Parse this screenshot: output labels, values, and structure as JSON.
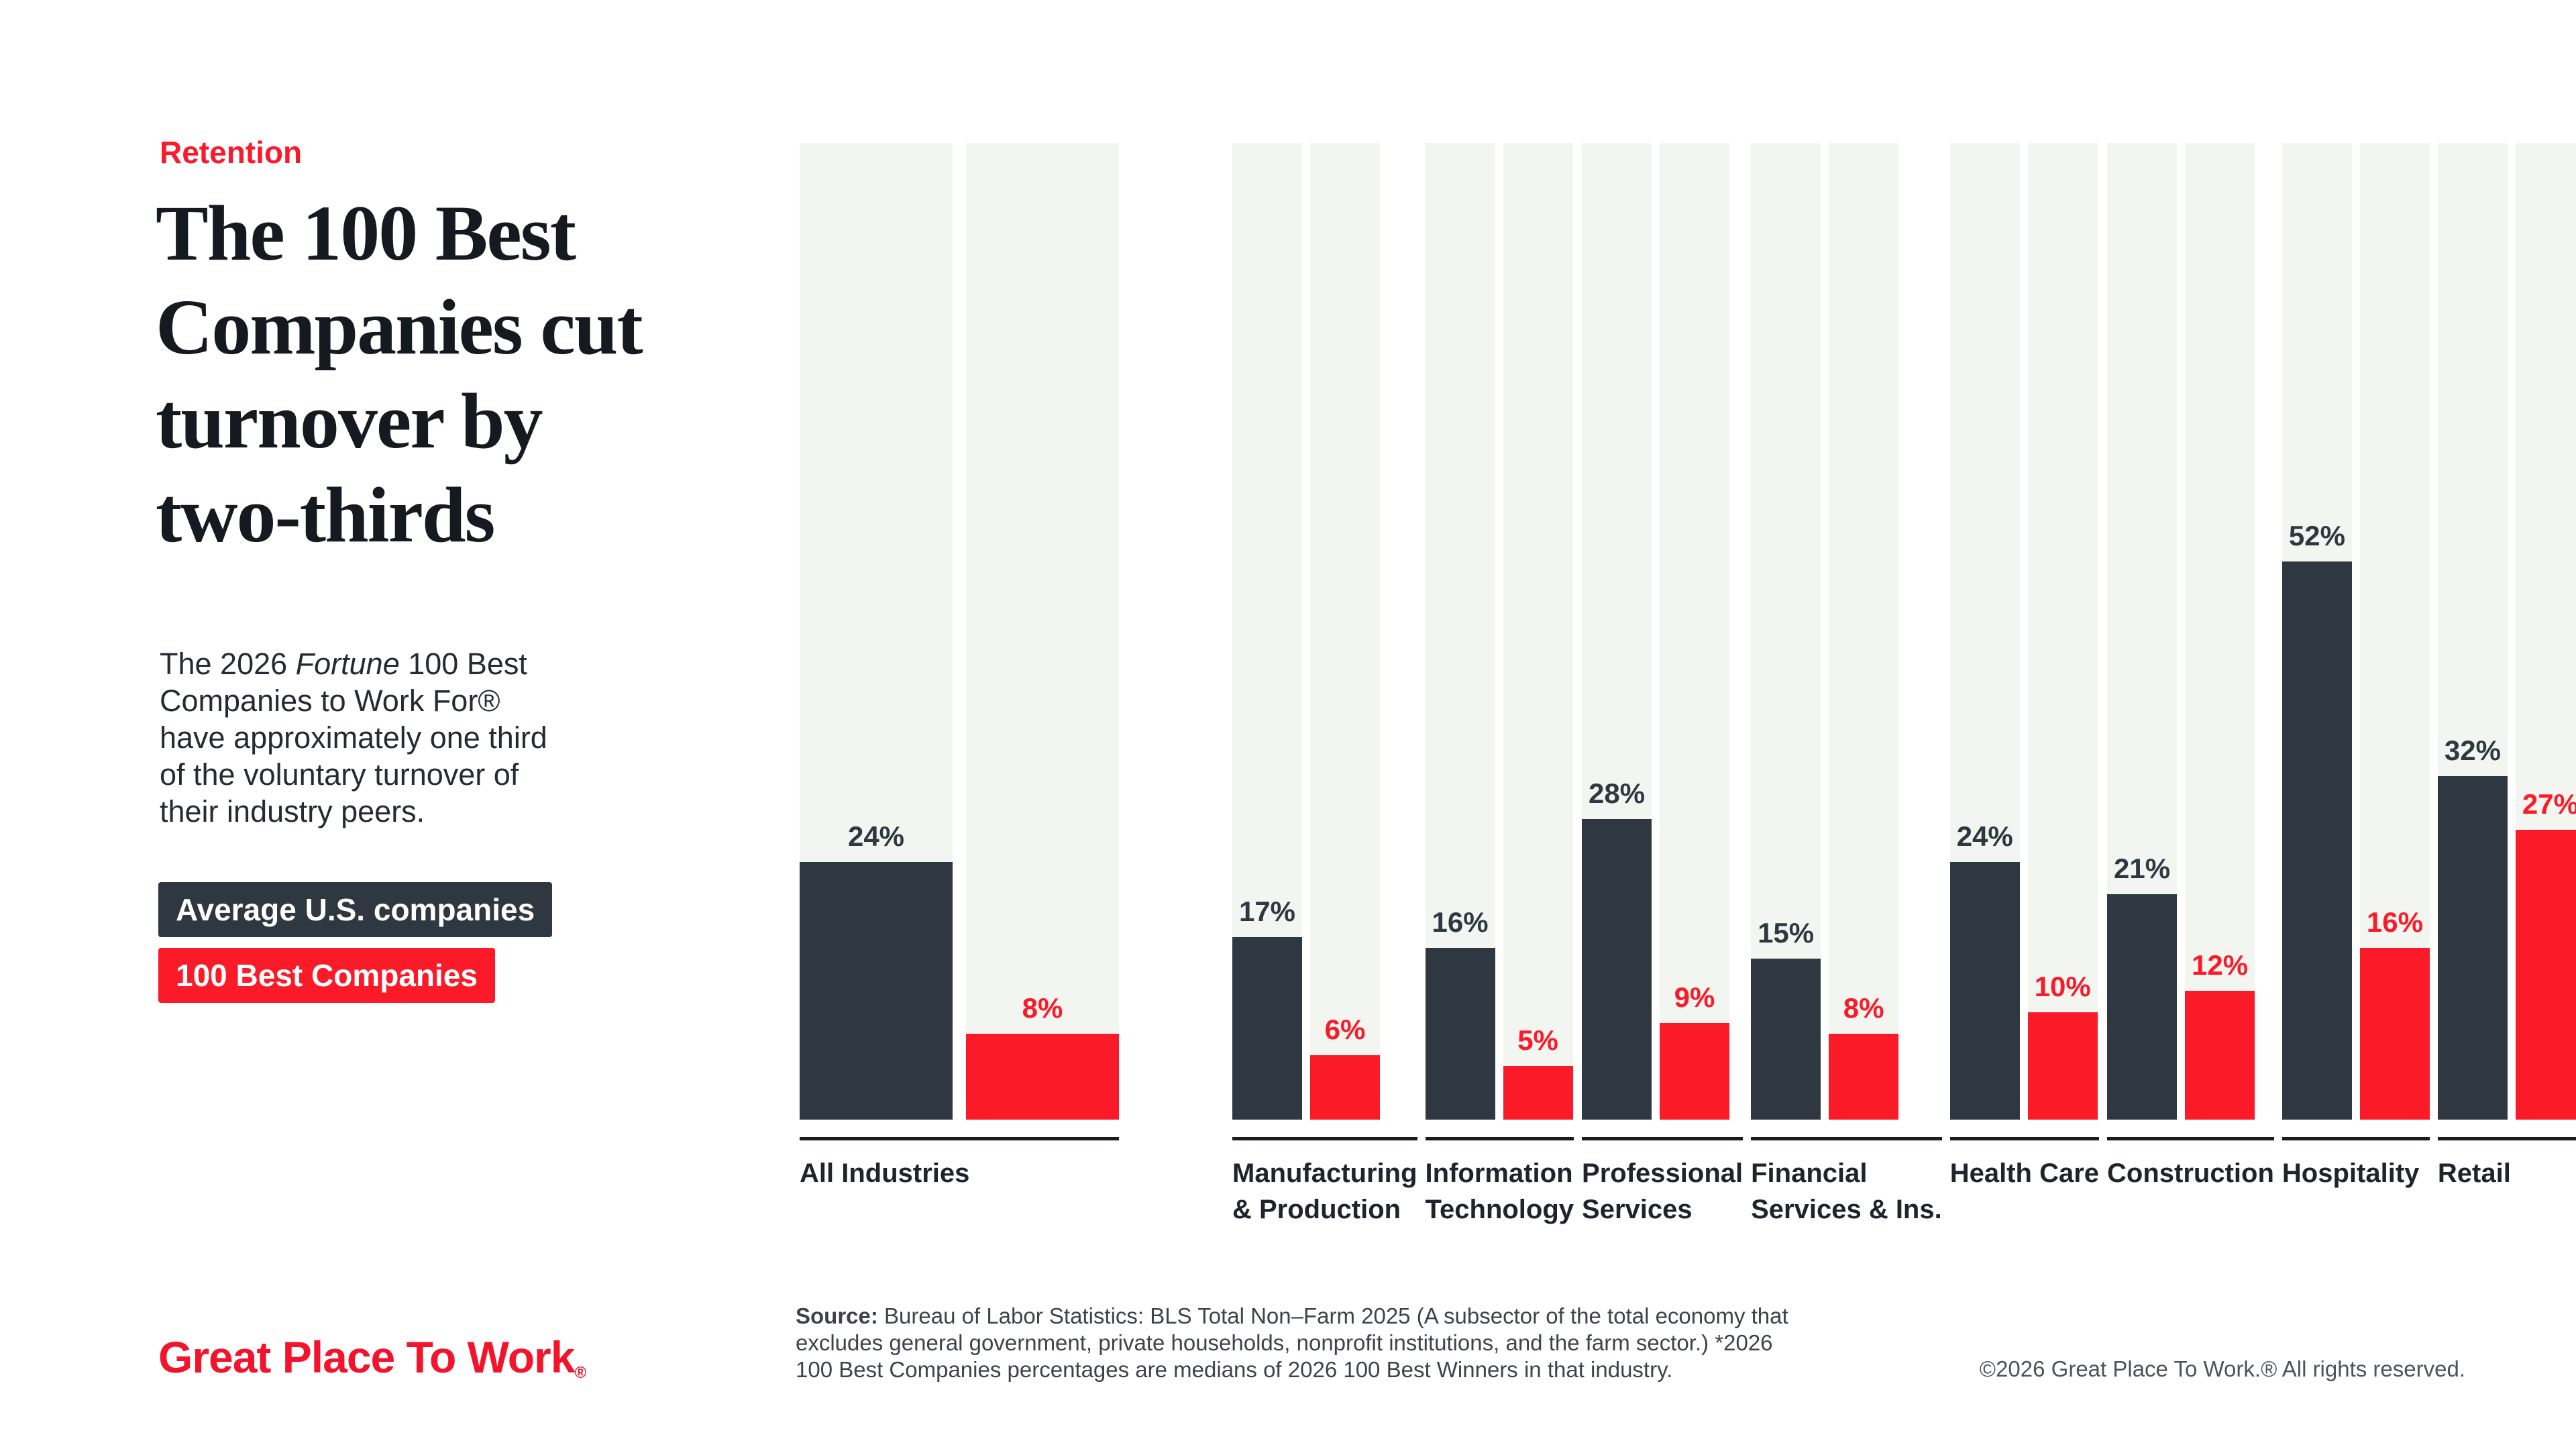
{
  "header": {
    "eyebrow": "Retention",
    "title_lines": [
      "The 100 Best",
      "Companies cut",
      "turnover by",
      "two-thirds"
    ],
    "intro": {
      "line1_pre": "The 2026 ",
      "line1_italic": "Fortune",
      "line1_post": " 100 Best",
      "lines": [
        "Companies to Work For®",
        "have approximately one third",
        "of the voluntary turnover of",
        "their industry peers."
      ]
    }
  },
  "legend": [
    {
      "label": "Average U.S. companies",
      "color": "#2F3741"
    },
    {
      "label": "100 Best Companies",
      "color": "#FB1A28"
    }
  ],
  "chart_data": {
    "type": "bar",
    "title": "The 100 Best Companies cut turnover by two-thirds",
    "xlabel": "",
    "ylabel": "Voluntary turnover",
    "unit": "%",
    "ylim": [
      0,
      91
    ],
    "grid": false,
    "legend_position": "left",
    "value_labels": true,
    "categories": [
      "All Industries",
      "Manufacturing & Production",
      "Information Technology",
      "Professional Services",
      "Financial Services & Ins.",
      "Health Care",
      "Construction",
      "Hospitality",
      "Retail"
    ],
    "category_label_lines": [
      [
        "All Industries"
      ],
      [
        "Manufacturing",
        "& Production"
      ],
      [
        "Information",
        "Technology"
      ],
      [
        "Professional",
        "Services"
      ],
      [
        "Financial",
        "Services & Ins."
      ],
      [
        "Health Care"
      ],
      [
        "Construction"
      ],
      [
        "Hospitality"
      ],
      [
        "Retail"
      ]
    ],
    "series": [
      {
        "name": "Average U.S. companies",
        "color": "#2F3741",
        "values": [
          24,
          17,
          16,
          28,
          15,
          24,
          21,
          52,
          32
        ]
      },
      {
        "name": "100 Best Companies",
        "color": "#FB1A28",
        "values": [
          8,
          6,
          5,
          9,
          8,
          10,
          12,
          16,
          27
        ]
      }
    ],
    "track_color": "#F3F5F0"
  },
  "footer": {
    "logo_text": "Great Place To Work",
    "logo_reg": "®",
    "source_prefix": "Source:",
    "source_lines": [
      " Bureau of Labor Statistics: BLS Total Non–Farm 2025 (A subsector of the total economy that",
      "excludes general government, private households, nonprofit institutions, and the farm sector.) *2026",
      "100 Best Companies percentages are medians of 2026 100 Best Winners in that industry."
    ],
    "copyright": "©2026 Great Place To Work.® All rights reserved."
  }
}
